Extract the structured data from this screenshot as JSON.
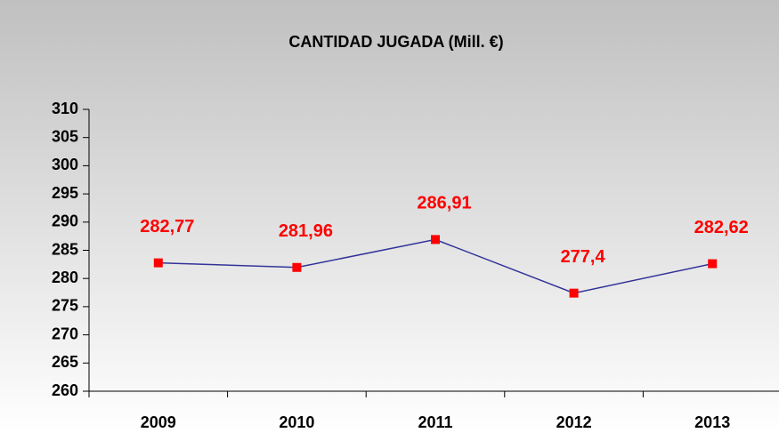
{
  "chart_data": {
    "type": "line",
    "title": "CANTIDAD JUGADA (Mill. €)",
    "categories": [
      "2009",
      "2010",
      "2011",
      "2012",
      "2013"
    ],
    "series": [
      {
        "name": "Cantidad jugada",
        "color": "#333399",
        "marker_color": "#ff0000",
        "values": [
          282.77,
          281.96,
          286.91,
          277.4,
          282.62
        ],
        "value_labels": [
          "282,77",
          "281,96",
          "286,91",
          "277,4",
          "282,62"
        ]
      }
    ],
    "ylim": [
      260,
      310
    ],
    "yticks": [
      260,
      265,
      270,
      275,
      280,
      285,
      290,
      295,
      300,
      305,
      310
    ],
    "value_label_color": "#ff0000",
    "grid": false,
    "legend": false
  }
}
